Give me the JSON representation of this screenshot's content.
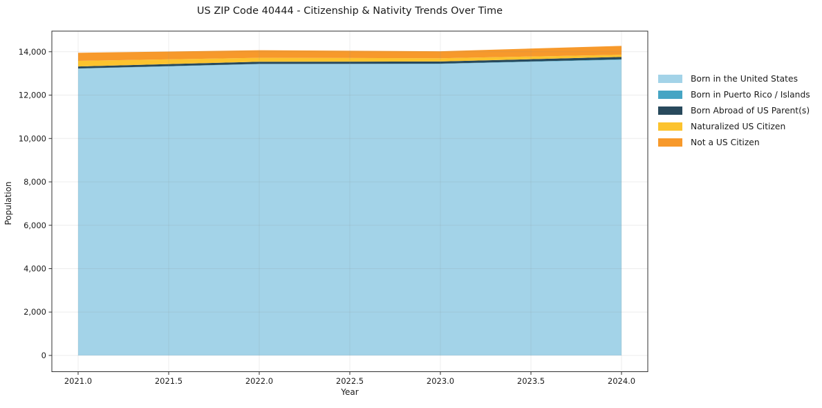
{
  "chart_data": {
    "type": "area",
    "stacked": true,
    "title": "US ZIP Code 40444 - Citizenship & Nativity Trends Over Time",
    "xlabel": "Year",
    "ylabel": "Population",
    "x": [
      2021,
      2022,
      2023,
      2024
    ],
    "series": [
      {
        "name": "Born in the United States",
        "color": "#a3d3e8",
        "values": [
          13220,
          13430,
          13440,
          13630
        ]
      },
      {
        "name": "Born in Puerto Rico / Islands",
        "color": "#46a5c4",
        "values": [
          10,
          10,
          10,
          20
        ]
      },
      {
        "name": "Born Abroad of US Parent(s)",
        "color": "#28495c",
        "values": [
          90,
          100,
          100,
          110
        ]
      },
      {
        "name": "Naturalized US Citizen",
        "color": "#fcc32e",
        "values": [
          260,
          180,
          150,
          100
        ]
      },
      {
        "name": "Not a US Citizen",
        "color": "#f7992b",
        "values": [
          370,
          350,
          320,
          410
        ]
      }
    ],
    "totals": [
      13950,
      14070,
      14020,
      14270
    ],
    "xlim": [
      2020.855,
      2024.145
    ],
    "ylim": [
      -750,
      14950
    ],
    "xticks": [
      2021.0,
      2021.5,
      2022.0,
      2022.5,
      2023.0,
      2023.5,
      2024.0
    ],
    "xtick_labels": [
      "2021.0",
      "2021.5",
      "2022.0",
      "2022.5",
      "2023.0",
      "2023.5",
      "2024.0"
    ],
    "yticks": [
      0,
      2000,
      4000,
      6000,
      8000,
      10000,
      12000,
      14000
    ],
    "ytick_labels": [
      "0",
      "2,000",
      "4,000",
      "6,000",
      "8,000",
      "10,000",
      "12,000",
      "14,000"
    ],
    "grid": true,
    "legend_position": "right-outside"
  },
  "colors": {
    "background": "#ffffff",
    "grid": "#888888",
    "spine": "#2e2e2e",
    "tick": "#2e2e2e",
    "text": "#1a1a1a"
  }
}
